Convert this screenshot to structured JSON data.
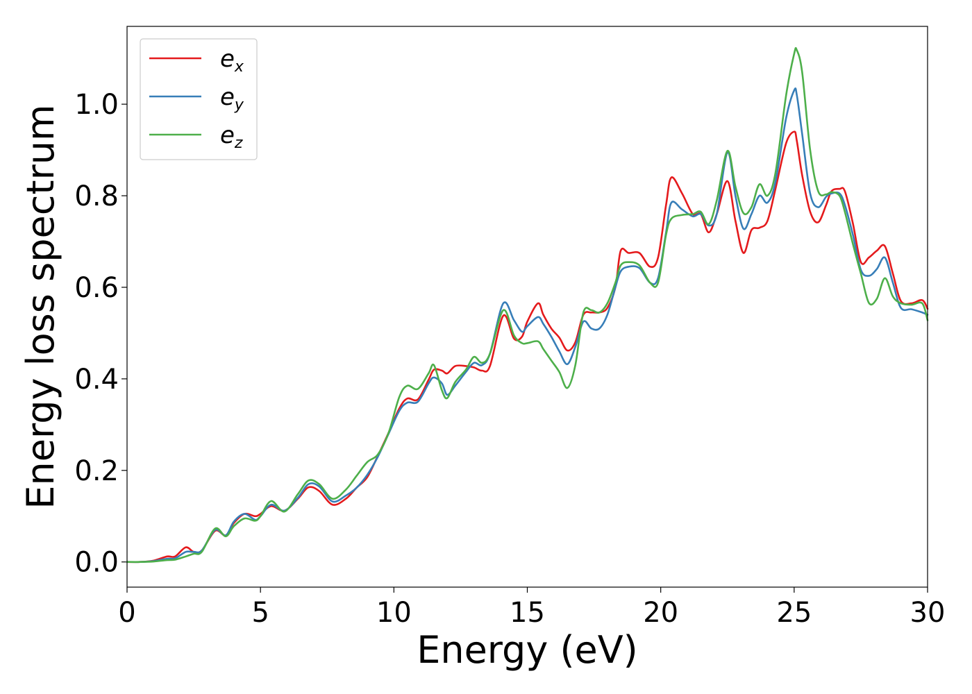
{
  "chart_data": {
    "type": "line",
    "xlabel": "Energy (eV)",
    "ylabel": "Energy loss spectrum",
    "xlim": [
      0,
      30
    ],
    "ylim": [
      -0.055,
      1.17
    ],
    "xticks": [
      0,
      5,
      10,
      15,
      20,
      25,
      30
    ],
    "xtick_labels": [
      "0",
      "5",
      "10",
      "15",
      "20",
      "25",
      "30"
    ],
    "yticks": [
      0.0,
      0.2,
      0.4,
      0.6,
      0.8,
      1.0
    ],
    "ytick_labels": [
      "0.0",
      "0.2",
      "0.4",
      "0.6",
      "0.8",
      "1.0"
    ],
    "grid": false,
    "legend_placement": "top-left",
    "x": [
      0,
      0.5,
      1,
      1.5,
      1.8,
      2.2,
      2.5,
      2.8,
      3.3,
      3.7,
      4,
      4.4,
      4.8,
      5,
      5.4,
      5.9,
      6.4,
      6.8,
      7.2,
      7.7,
      8.2,
      8.6,
      9,
      9.4,
      9.8,
      10.2,
      10.5,
      10.9,
      11.3,
      11.5,
      11.8,
      12,
      12.3,
      12.7,
      13,
      13.3,
      13.6,
      14.1,
      14.5,
      14.8,
      15,
      15.4,
      15.6,
      15.9,
      16.2,
      16.5,
      16.8,
      17.1,
      17.4,
      17.7,
      18,
      18.3,
      18.5,
      18.8,
      19.2,
      19.6,
      19.9,
      20.2,
      20.4,
      20.8,
      21.2,
      21.5,
      21.8,
      22.1,
      22.5,
      22.8,
      23.1,
      23.4,
      23.7,
      24,
      24.3,
      24.7,
      25,
      25.1,
      25.3,
      25.6,
      25.9,
      26.2,
      26.4,
      26.7,
      26.9,
      27.2,
      27.5,
      27.8,
      28.1,
      28.4,
      28.7,
      29,
      29.4,
      29.8,
      30
    ],
    "series": [
      {
        "name": "e_x",
        "label_main": "e",
        "label_sub": "x",
        "color": "#e41a1c",
        "values": [
          0,
          0,
          0.003,
          0.012,
          0.012,
          0.032,
          0.022,
          0.025,
          0.068,
          0.058,
          0.085,
          0.105,
          0.1,
          0.105,
          0.122,
          0.112,
          0.138,
          0.163,
          0.155,
          0.125,
          0.138,
          0.162,
          0.185,
          0.232,
          0.282,
          0.335,
          0.357,
          0.355,
          0.398,
          0.42,
          0.418,
          0.412,
          0.428,
          0.428,
          0.425,
          0.418,
          0.428,
          0.538,
          0.488,
          0.492,
          0.525,
          0.565,
          0.54,
          0.51,
          0.49,
          0.462,
          0.48,
          0.54,
          0.545,
          0.545,
          0.555,
          0.6,
          0.68,
          0.675,
          0.675,
          0.645,
          0.665,
          0.78,
          0.84,
          0.805,
          0.76,
          0.76,
          0.72,
          0.76,
          0.832,
          0.745,
          0.675,
          0.725,
          0.73,
          0.745,
          0.815,
          0.915,
          0.94,
          0.92,
          0.845,
          0.765,
          0.742,
          0.78,
          0.81,
          0.815,
          0.81,
          0.74,
          0.655,
          0.665,
          0.68,
          0.69,
          0.63,
          0.57,
          0.565,
          0.572,
          0.553
        ]
      },
      {
        "name": "e_y",
        "label_main": "e",
        "label_sub": "y",
        "color": "#377eb8",
        "values": [
          0,
          0,
          0.002,
          0.007,
          0.008,
          0.022,
          0.022,
          0.025,
          0.07,
          0.058,
          0.088,
          0.105,
          0.092,
          0.1,
          0.125,
          0.112,
          0.14,
          0.17,
          0.165,
          0.132,
          0.145,
          0.162,
          0.19,
          0.23,
          0.28,
          0.33,
          0.348,
          0.35,
          0.39,
          0.403,
          0.39,
          0.365,
          0.385,
          0.415,
          0.435,
          0.43,
          0.455,
          0.565,
          0.528,
          0.503,
          0.515,
          0.535,
          0.52,
          0.492,
          0.46,
          0.432,
          0.47,
          0.525,
          0.51,
          0.51,
          0.54,
          0.6,
          0.635,
          0.645,
          0.642,
          0.61,
          0.62,
          0.72,
          0.785,
          0.77,
          0.755,
          0.76,
          0.735,
          0.76,
          0.895,
          0.8,
          0.728,
          0.76,
          0.8,
          0.785,
          0.83,
          0.97,
          1.03,
          1.02,
          0.935,
          0.805,
          0.775,
          0.798,
          0.805,
          0.805,
          0.78,
          0.715,
          0.638,
          0.625,
          0.64,
          0.665,
          0.61,
          0.555,
          0.552,
          0.545,
          0.54
        ]
      },
      {
        "name": "e_z",
        "label_main": "e",
        "label_sub": "z",
        "color": "#4daf4a",
        "values": [
          0,
          0,
          0.001,
          0.004,
          0.005,
          0.012,
          0.018,
          0.022,
          0.073,
          0.056,
          0.078,
          0.095,
          0.09,
          0.1,
          0.133,
          0.11,
          0.148,
          0.178,
          0.17,
          0.138,
          0.158,
          0.188,
          0.218,
          0.235,
          0.282,
          0.36,
          0.385,
          0.378,
          0.412,
          0.43,
          0.375,
          0.358,
          0.393,
          0.42,
          0.448,
          0.435,
          0.455,
          0.55,
          0.495,
          0.478,
          0.478,
          0.482,
          0.465,
          0.44,
          0.415,
          0.38,
          0.43,
          0.545,
          0.55,
          0.545,
          0.565,
          0.61,
          0.648,
          0.655,
          0.648,
          0.61,
          0.61,
          0.715,
          0.75,
          0.758,
          0.76,
          0.765,
          0.738,
          0.79,
          0.898,
          0.82,
          0.762,
          0.775,
          0.825,
          0.8,
          0.85,
          1.02,
          1.11,
          1.118,
          1.07,
          0.9,
          0.81,
          0.803,
          0.808,
          0.8,
          0.765,
          0.695,
          0.63,
          0.566,
          0.575,
          0.62,
          0.58,
          0.565,
          0.562,
          0.565,
          0.528
        ]
      }
    ]
  }
}
